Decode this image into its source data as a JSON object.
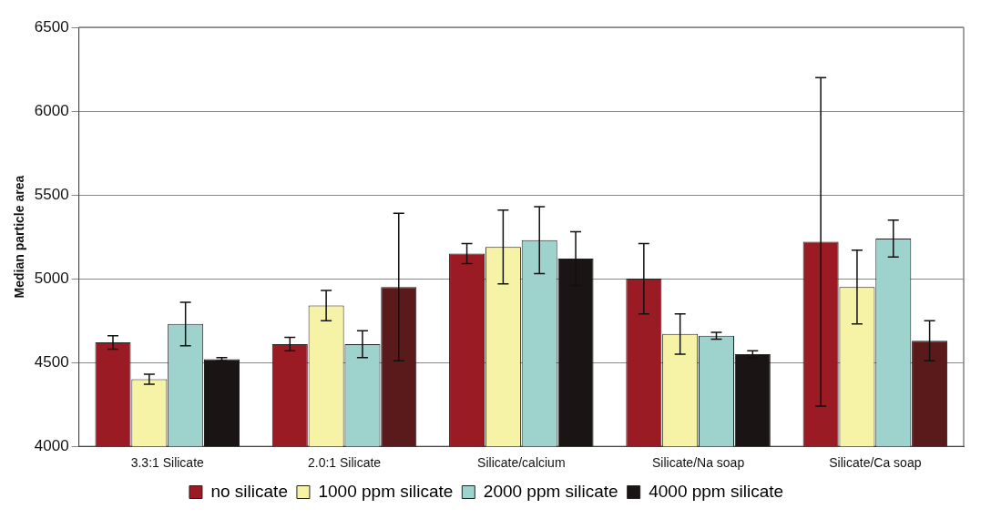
{
  "chart_data": {
    "type": "bar",
    "ylabel": "Median particle area",
    "categories": [
      "3.3:1 Silicate",
      "2.0:1 Silicate",
      "Silicate/calcium",
      "Silicate/Na soap",
      "Silicate/Ca soap"
    ],
    "series": [
      {
        "name": "no silicate",
        "color": "#9b1b25",
        "values": [
          4620,
          4610,
          5150,
          5000,
          5220
        ],
        "errors": [
          40,
          40,
          60,
          210,
          980
        ]
      },
      {
        "name": "1000 ppm silicate",
        "color": "#f6f3a6",
        "values": [
          4400,
          4840,
          5190,
          4670,
          4950
        ],
        "errors": [
          30,
          90,
          220,
          120,
          220
        ]
      },
      {
        "name": "2000 ppm silicate",
        "color": "#9ed2cc",
        "values": [
          4730,
          4610,
          5230,
          4660,
          5240
        ],
        "errors": [
          130,
          80,
          200,
          20,
          110
        ]
      },
      {
        "name": "4000 ppm silicate",
        "color": "#1a1414",
        "colors": [
          "#1a1414",
          "#5a1a1c",
          "#1a1414",
          "#1a1414",
          "#5a1a1c"
        ],
        "values": [
          4520,
          4950,
          5120,
          4550,
          4630
        ],
        "errors": [
          10,
          440,
          160,
          20,
          120
        ]
      }
    ],
    "ylim": [
      4000,
      6500
    ],
    "yticks": [
      4000,
      4500,
      5000,
      5500,
      6000,
      6500
    ],
    "grid": "y",
    "legend": "bottom"
  }
}
